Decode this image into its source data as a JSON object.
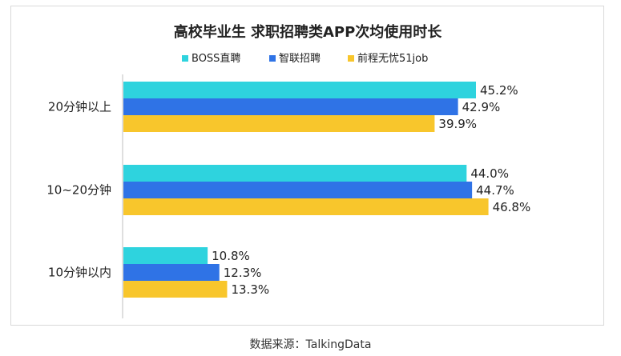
{
  "source_caption": "数据来源：TalkingData",
  "chart_data": {
    "type": "bar",
    "orientation": "horizontal",
    "title": "高校毕业生 求职招聘类APP次均使用时长",
    "xlabel": "",
    "ylabel": "",
    "categories": [
      "20分钟以上",
      "10~20分钟",
      "10分钟以内"
    ],
    "series": [
      {
        "name": "BOSS直聘",
        "color": "#2ed3de",
        "values": [
          45.2,
          44.0,
          10.8
        ]
      },
      {
        "name": "智联招聘",
        "color": "#2f73e6",
        "values": [
          42.9,
          44.7,
          12.3
        ]
      },
      {
        "name": "前程无忧51job",
        "color": "#f8c62c",
        "values": [
          39.9,
          46.8,
          13.3
        ]
      }
    ],
    "value_suffix": "%",
    "xlim": [
      0,
      50
    ],
    "grid": false,
    "legend_position": "top"
  }
}
